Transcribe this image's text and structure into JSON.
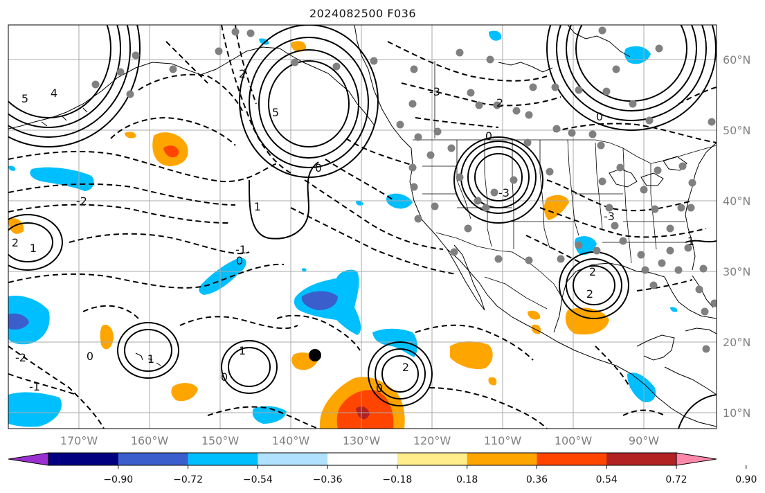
{
  "title": "2024082500 F036",
  "lat_labels": [
    "60°N",
    "50°N",
    "40°N",
    "30°N",
    "20°N",
    "10°N"
  ],
  "lon_labels": [
    "170°W",
    "160°W",
    "150°W",
    "140°W",
    "130°W",
    "120°W",
    "110°W",
    "100°W",
    "90°W"
  ],
  "colorbar": {
    "colors": [
      "#9b30d0",
      "#000080",
      "#3a5fcd",
      "#00bfff",
      "#b0e2ff",
      "#ffffff",
      "#ffec8b",
      "#ffa500",
      "#ff4500",
      "#b22222",
      "#ff88aa"
    ],
    "tick_labels": [
      "−0.90",
      "−0.72",
      "−0.54",
      "−0.36",
      "−0.18",
      "0.18",
      "0.36",
      "0.54",
      "0.72",
      "0.90"
    ]
  },
  "contour_labels": [
    {
      "text": "5"
    },
    {
      "text": "4"
    },
    {
      "text": "2"
    },
    {
      "text": "0"
    },
    {
      "text": "5"
    },
    {
      "text": "1"
    },
    {
      "text": "0"
    },
    {
      "text": "-2"
    },
    {
      "text": "-3"
    },
    {
      "text": "2"
    },
    {
      "text": "-3"
    },
    {
      "text": "2"
    },
    {
      "text": "2"
    },
    {
      "text": "1"
    },
    {
      "text": "-1"
    },
    {
      "text": "1"
    },
    {
      "text": "0"
    },
    {
      "text": "1"
    },
    {
      "text": "0"
    },
    {
      "text": "2"
    },
    {
      "text": "0"
    },
    {
      "text": "-2"
    },
    {
      "text": "-1"
    },
    {
      "text": "2"
    },
    {
      "text": "0"
    },
    {
      "text": "0"
    },
    {
      "text": "-3"
    },
    {
      "text": "1"
    }
  ]
}
